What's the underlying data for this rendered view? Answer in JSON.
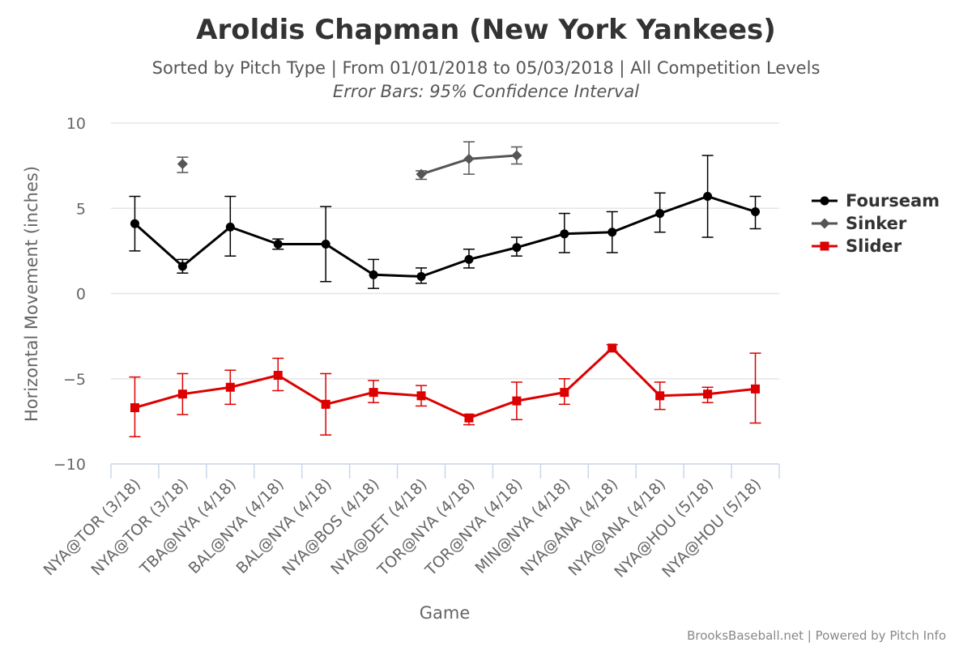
{
  "chart_data": {
    "type": "line",
    "title": "Aroldis Chapman (New York Yankees)",
    "subtitle": "Sorted by Pitch Type | From 01/01/2018 to 05/03/2018 | All Competition Levels",
    "subtitle2": "Error Bars: 95% Confidence Interval",
    "xlabel": "Game",
    "ylabel": "Horizontal Movement (inches)",
    "ylim": [
      -10,
      10
    ],
    "yticks": [
      10,
      5,
      0,
      -5,
      -10
    ],
    "ytick_labels": [
      "10",
      "5",
      "0",
      "−5",
      "−10"
    ],
    "categories": [
      "NYA@TOR (3/18)",
      "NYA@TOR (3/18)",
      "TBA@NYA (4/18)",
      "BAL@NYA (4/18)",
      "BAL@NYA (4/18)",
      "NYA@BOS (4/18)",
      "NYA@DET (4/18)",
      "TOR@NYA (4/18)",
      "TOR@NYA (4/18)",
      "MIN@NYA (4/18)",
      "NYA@ANA (4/18)",
      "NYA@ANA (4/18)",
      "NYA@HOU (5/18)",
      "NYA@HOU (5/18)"
    ],
    "grid": true,
    "legend_position": "right",
    "series": [
      {
        "name": "Fourseam",
        "color": "#000000",
        "marker": "circle",
        "values": [
          4.1,
          1.6,
          3.9,
          2.9,
          2.9,
          1.1,
          1.0,
          2.0,
          2.7,
          3.5,
          3.6,
          4.7,
          5.7,
          4.8
        ],
        "error_low": [
          2.5,
          1.2,
          2.2,
          2.6,
          0.7,
          0.3,
          0.6,
          1.5,
          2.2,
          2.4,
          2.4,
          3.6,
          3.3,
          3.8
        ],
        "error_high": [
          5.7,
          2.0,
          5.7,
          3.2,
          5.1,
          2.0,
          1.5,
          2.6,
          3.3,
          4.7,
          4.8,
          5.9,
          8.1,
          5.7
        ]
      },
      {
        "name": "Sinker",
        "color": "#555555",
        "marker": "diamond",
        "values": [
          null,
          7.6,
          null,
          null,
          null,
          null,
          7.0,
          7.9,
          8.1,
          null,
          null,
          null,
          null,
          null
        ],
        "error_low": [
          null,
          7.1,
          null,
          null,
          null,
          null,
          6.7,
          7.0,
          7.6,
          null,
          null,
          null,
          null,
          null
        ],
        "error_high": [
          null,
          8.0,
          null,
          null,
          null,
          null,
          7.2,
          8.9,
          8.6,
          null,
          null,
          null,
          null,
          null
        ]
      },
      {
        "name": "Slider",
        "color": "#dd0000",
        "marker": "square",
        "values": [
          -6.7,
          -5.9,
          -5.5,
          -4.8,
          -6.5,
          -5.8,
          -6.0,
          -7.3,
          -6.3,
          -5.8,
          -3.2,
          -6.0,
          -5.9,
          -5.6
        ],
        "error_low": [
          -8.4,
          -7.1,
          -6.5,
          -5.7,
          -8.3,
          -6.4,
          -6.6,
          -7.7,
          -7.4,
          -6.5,
          -3.4,
          -6.8,
          -6.4,
          -7.6
        ],
        "error_high": [
          -4.9,
          -4.7,
          -4.5,
          -3.8,
          -4.7,
          -5.1,
          -5.4,
          -7.1,
          -5.2,
          -5.0,
          -3.0,
          -5.2,
          -5.5,
          -3.5
        ]
      }
    ]
  },
  "credits": "BrooksBaseball.net | Powered by Pitch Info"
}
